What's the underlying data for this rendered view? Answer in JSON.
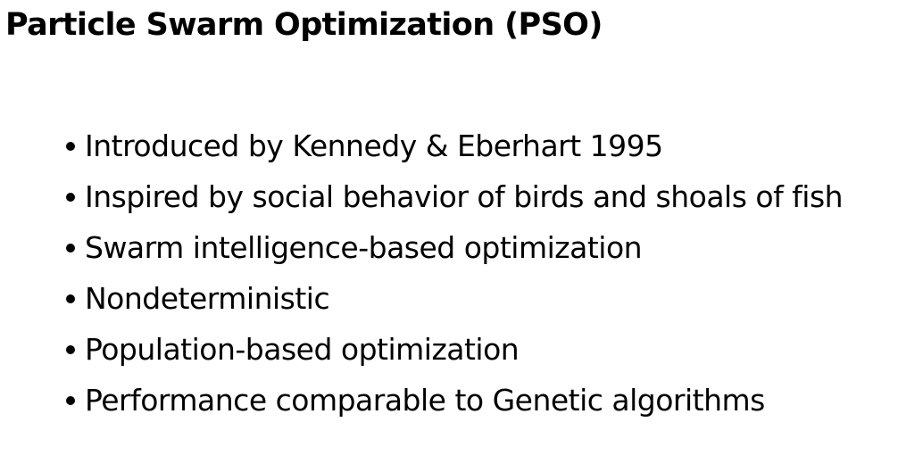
{
  "slide": {
    "title": "Particle Swarm Optimization (PSO)",
    "bullets": [
      "Introduced by Kennedy & Eberhart 1995",
      "Inspired by social behavior of birds and shoals of fish",
      "Swarm intelligence-based optimization",
      "Nondeterministic",
      "Population-based optimization",
      "Performance comparable to Genetic algorithms"
    ]
  }
}
